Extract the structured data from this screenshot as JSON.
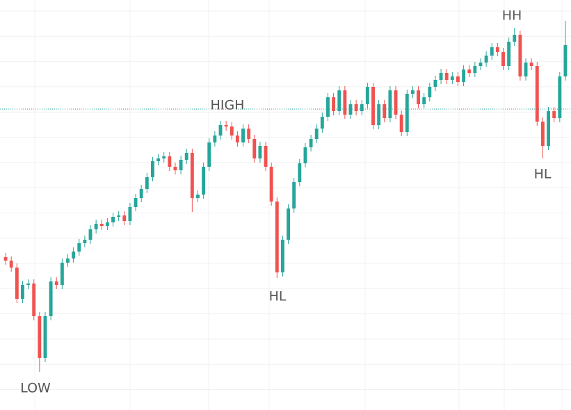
{
  "chart_data": {
    "type": "candlestick",
    "ylim": [
      0,
      590
    ],
    "grid": true,
    "up_color": "#26a69a",
    "down_color": "#ef5350",
    "reference_line": 433,
    "reference_color": "#26a69a",
    "annotations": [
      "LOW",
      "HIGH",
      "HL",
      "HH",
      "HL"
    ],
    "open": [
      220,
      215,
      205,
      160,
      180,
      182,
      135,
      75,
      135,
      185,
      180,
      212,
      218,
      228,
      240,
      245,
      260,
      268,
      265,
      270,
      278,
      280,
      272,
      292,
      305,
      318,
      335,
      358,
      362,
      365,
      350,
      345,
      360,
      370,
      305,
      310,
      350,
      385,
      395,
      410,
      408,
      395,
      385,
      405,
      390,
      362,
      380,
      350,
      300,
      198,
      245,
      290,
      328,
      355,
      378,
      390,
      405,
      422,
      450,
      430,
      460,
      425,
      440,
      430,
      440,
      465,
      410,
      440,
      420,
      460,
      425,
      400,
      455,
      460,
      440,
      450,
      465,
      475,
      485,
      475,
      480,
      472,
      490,
      485,
      495,
      500,
      510,
      522,
      515,
      495,
      530,
      540,
      480,
      500,
      495,
      415,
      380,
      430,
      420,
      480
    ],
    "high": [
      226,
      221,
      211,
      186,
      188,
      188,
      141,
      141,
      191,
      191,
      218,
      224,
      234,
      246,
      251,
      266,
      274,
      274,
      276,
      284,
      286,
      286,
      298,
      311,
      324,
      341,
      364,
      368,
      371,
      371,
      356,
      366,
      376,
      376,
      316,
      356,
      391,
      401,
      416,
      416,
      414,
      401,
      411,
      411,
      396,
      386,
      386,
      356,
      306,
      251,
      296,
      334,
      361,
      384,
      396,
      411,
      428,
      456,
      456,
      466,
      466,
      446,
      446,
      446,
      471,
      471,
      446,
      446,
      466,
      466,
      431,
      461,
      466,
      466,
      456,
      471,
      481,
      491,
      491,
      486,
      486,
      496,
      496,
      501,
      506,
      516,
      528,
      528,
      521,
      536,
      550,
      546,
      506,
      506,
      501,
      421,
      436,
      436,
      486,
      560
    ],
    "low": [
      209,
      199,
      154,
      154,
      174,
      129,
      55,
      69,
      129,
      174,
      174,
      206,
      212,
      222,
      234,
      239,
      254,
      259,
      259,
      264,
      272,
      266,
      266,
      286,
      299,
      312,
      329,
      352,
      356,
      344,
      339,
      339,
      354,
      285,
      299,
      304,
      344,
      379,
      389,
      402,
      389,
      379,
      379,
      384,
      356,
      356,
      344,
      294,
      190,
      192,
      239,
      284,
      322,
      349,
      372,
      384,
      399,
      416,
      424,
      424,
      419,
      419,
      424,
      424,
      434,
      404,
      404,
      414,
      414,
      419,
      394,
      394,
      449,
      434,
      434,
      444,
      459,
      469,
      469,
      469,
      466,
      466,
      479,
      479,
      489,
      494,
      504,
      509,
      489,
      489,
      524,
      474,
      474,
      489,
      409,
      362,
      374,
      414,
      414,
      474
    ],
    "close": [
      215,
      205,
      160,
      180,
      182,
      135,
      75,
      135,
      185,
      180,
      212,
      218,
      228,
      240,
      245,
      260,
      268,
      265,
      270,
      278,
      280,
      272,
      292,
      305,
      318,
      335,
      358,
      362,
      365,
      350,
      345,
      360,
      370,
      305,
      310,
      350,
      385,
      395,
      410,
      408,
      395,
      385,
      405,
      390,
      362,
      380,
      350,
      300,
      198,
      245,
      290,
      328,
      355,
      378,
      390,
      405,
      422,
      450,
      430,
      460,
      425,
      440,
      430,
      440,
      465,
      410,
      440,
      420,
      460,
      425,
      400,
      455,
      460,
      440,
      450,
      465,
      475,
      485,
      475,
      480,
      472,
      490,
      485,
      495,
      500,
      510,
      522,
      515,
      495,
      530,
      540,
      480,
      500,
      495,
      415,
      380,
      430,
      420,
      480,
      525
    ]
  }
}
